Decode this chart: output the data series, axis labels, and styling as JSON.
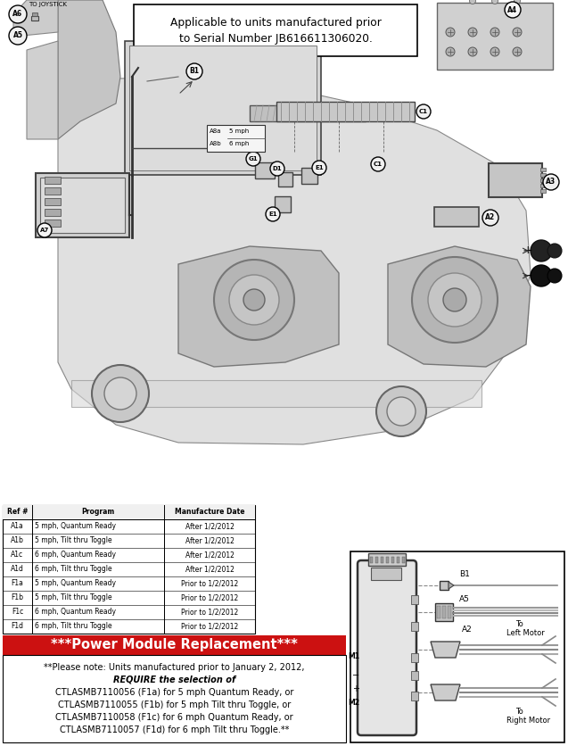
{
  "title_box_text": "Applicable to units manufactured prior\nto Serial Number JB616611306020.",
  "table_headers": [
    "Ref #",
    "Program",
    "Manufacture Date"
  ],
  "table_rows": [
    [
      "A1a",
      "5 mph, Quantum Ready",
      "After 1/2/2012"
    ],
    [
      "A1b",
      "5 mph, Tilt thru Toggle",
      "After 1/2/2012"
    ],
    [
      "A1c",
      "6 mph, Quantum Ready",
      "After 1/2/2012"
    ],
    [
      "A1d",
      "6 mph, Tilt thru Toggle",
      "After 1/2/2012"
    ],
    [
      "F1a",
      "5 mph, Quantum Ready",
      "Prior to 1/2/2012"
    ],
    [
      "F1b",
      "5 mph, Tilt thru Toggle",
      "Prior to 1/2/2012"
    ],
    [
      "F1c",
      "6 mph, Quantum Ready",
      "Prior to 1/2/2012"
    ],
    [
      "F1d",
      "6 mph, Tilt thru Toggle",
      "Prior to 1/2/2012"
    ]
  ],
  "red_banner_text": "***Power Module Replacement***",
  "red_banner_color": "#cc1111",
  "red_banner_text_color": "#ffffff",
  "body_text": [
    {
      "text": "**Please note: Units manufactured prior to January 2, 2012,",
      "bold": false,
      "italic": false
    },
    {
      "text": "REQUIRE the selection of",
      "bold": true,
      "italic": true
    },
    {
      "text": "CTLASMB7110056 (F1a) for 5 mph Quantum Ready, or",
      "bold": false,
      "italic": false
    },
    {
      "text": "CTLASMB7110055 (F1b) for 5 mph Tilt thru Toggle, or",
      "bold": false,
      "italic": false
    },
    {
      "text": "CTLASMB7110058 (F1c) for 6 mph Quantum Ready, or",
      "bold": false,
      "italic": false
    },
    {
      "text": "CTLASMB7110057 (F1d) for 6 mph Tilt thru Toggle.**",
      "bold": false,
      "italic": false
    }
  ],
  "bg_color": "#ffffff",
  "line_color": "#333333",
  "light_gray": "#d8d8d8",
  "mid_gray": "#aaaaaa",
  "dark_gray": "#555555"
}
